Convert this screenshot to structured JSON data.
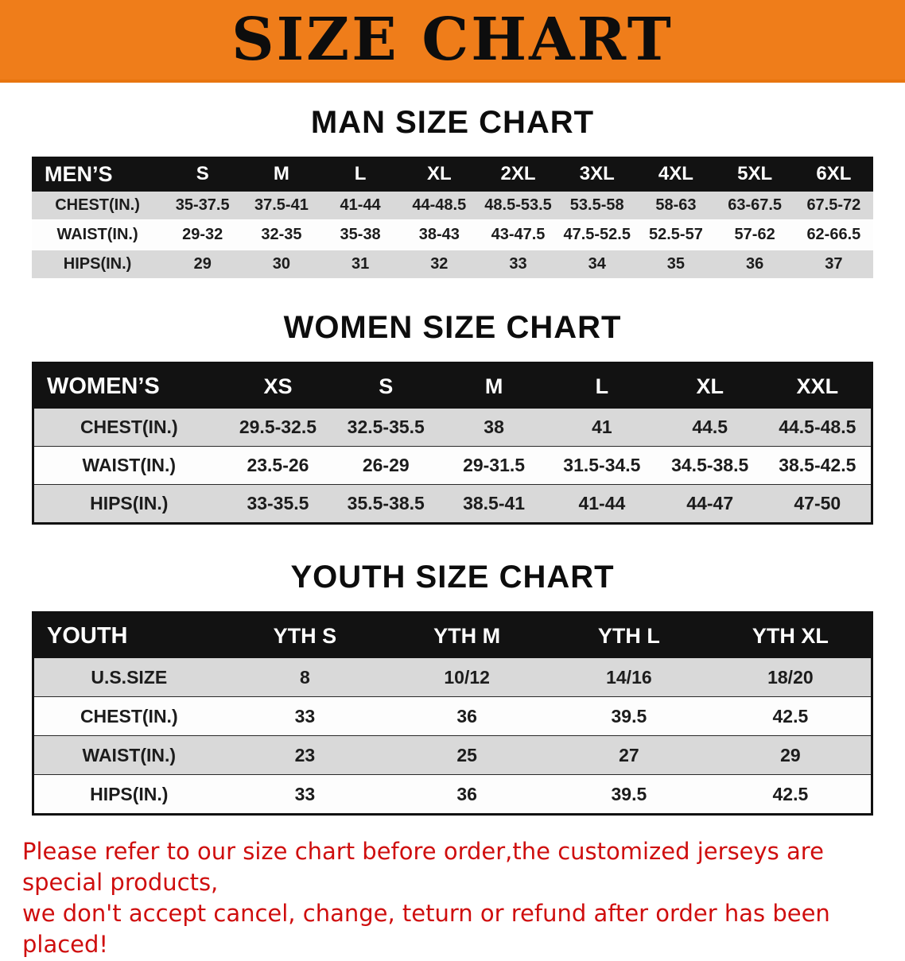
{
  "banner": {
    "title": "SIZE CHART",
    "bg_color": "#ef7d1a"
  },
  "colors": {
    "banner_bg": "#ef7d1a",
    "header_row_bg": "#121212",
    "stripe_row_bg": "#d9d9d9",
    "footer_text": "#cf0e0e"
  },
  "sections": [
    {
      "heading": "MAN SIZE CHART",
      "table": {
        "header": [
          "MEN’S",
          "S",
          "M",
          "L",
          "XL",
          "2XL",
          "3XL",
          "4XL",
          "5XL",
          "6XL"
        ],
        "rows": [
          [
            "CHEST(IN.)",
            "35-37.5",
            "37.5-41",
            "41-44",
            "44-48.5",
            "48.5-53.5",
            "53.5-58",
            "58-63",
            "63-67.5",
            "67.5-72"
          ],
          [
            "WAIST(IN.)",
            "29-32",
            "32-35",
            "35-38",
            "38-43",
            "43-47.5",
            "47.5-52.5",
            "52.5-57",
            "57-62",
            "62-66.5"
          ],
          [
            "HIPS(IN.)",
            "29",
            "30",
            "31",
            "32",
            "33",
            "34",
            "35",
            "36",
            "37"
          ]
        ]
      }
    },
    {
      "heading": "WOMEN SIZE CHART",
      "table": {
        "header": [
          "WOMEN’S",
          "XS",
          "S",
          "M",
          "L",
          "XL",
          "XXL"
        ],
        "rows": [
          [
            "CHEST(IN.)",
            "29.5-32.5",
            "32.5-35.5",
            "38",
            "41",
            "44.5",
            "44.5-48.5"
          ],
          [
            "WAIST(IN.)",
            "23.5-26",
            "26-29",
            "29-31.5",
            "31.5-34.5",
            "34.5-38.5",
            "38.5-42.5"
          ],
          [
            "HIPS(IN.)",
            "33-35.5",
            "35.5-38.5",
            "38.5-41",
            "41-44",
            "44-47",
            "47-50"
          ]
        ]
      }
    },
    {
      "heading": "YOUTH SIZE CHART",
      "table": {
        "header": [
          "YOUTH",
          "YTH S",
          "YTH M",
          "YTH L",
          "YTH XL"
        ],
        "rows": [
          [
            "U.S.SIZE",
            "8",
            "10/12",
            "14/16",
            "18/20"
          ],
          [
            "CHEST(IN.)",
            "33",
            "36",
            "39.5",
            "42.5"
          ],
          [
            "WAIST(IN.)",
            "23",
            "25",
            "27",
            "29"
          ],
          [
            "HIPS(IN.)",
            "33",
            "36",
            "39.5",
            "42.5"
          ]
        ]
      }
    }
  ],
  "footer": {
    "line1": "Please refer to our size chart before order,the customized jerseys are special products,",
    "line2": "we don't accept cancel, change, teturn or refund after order has been placed!"
  }
}
